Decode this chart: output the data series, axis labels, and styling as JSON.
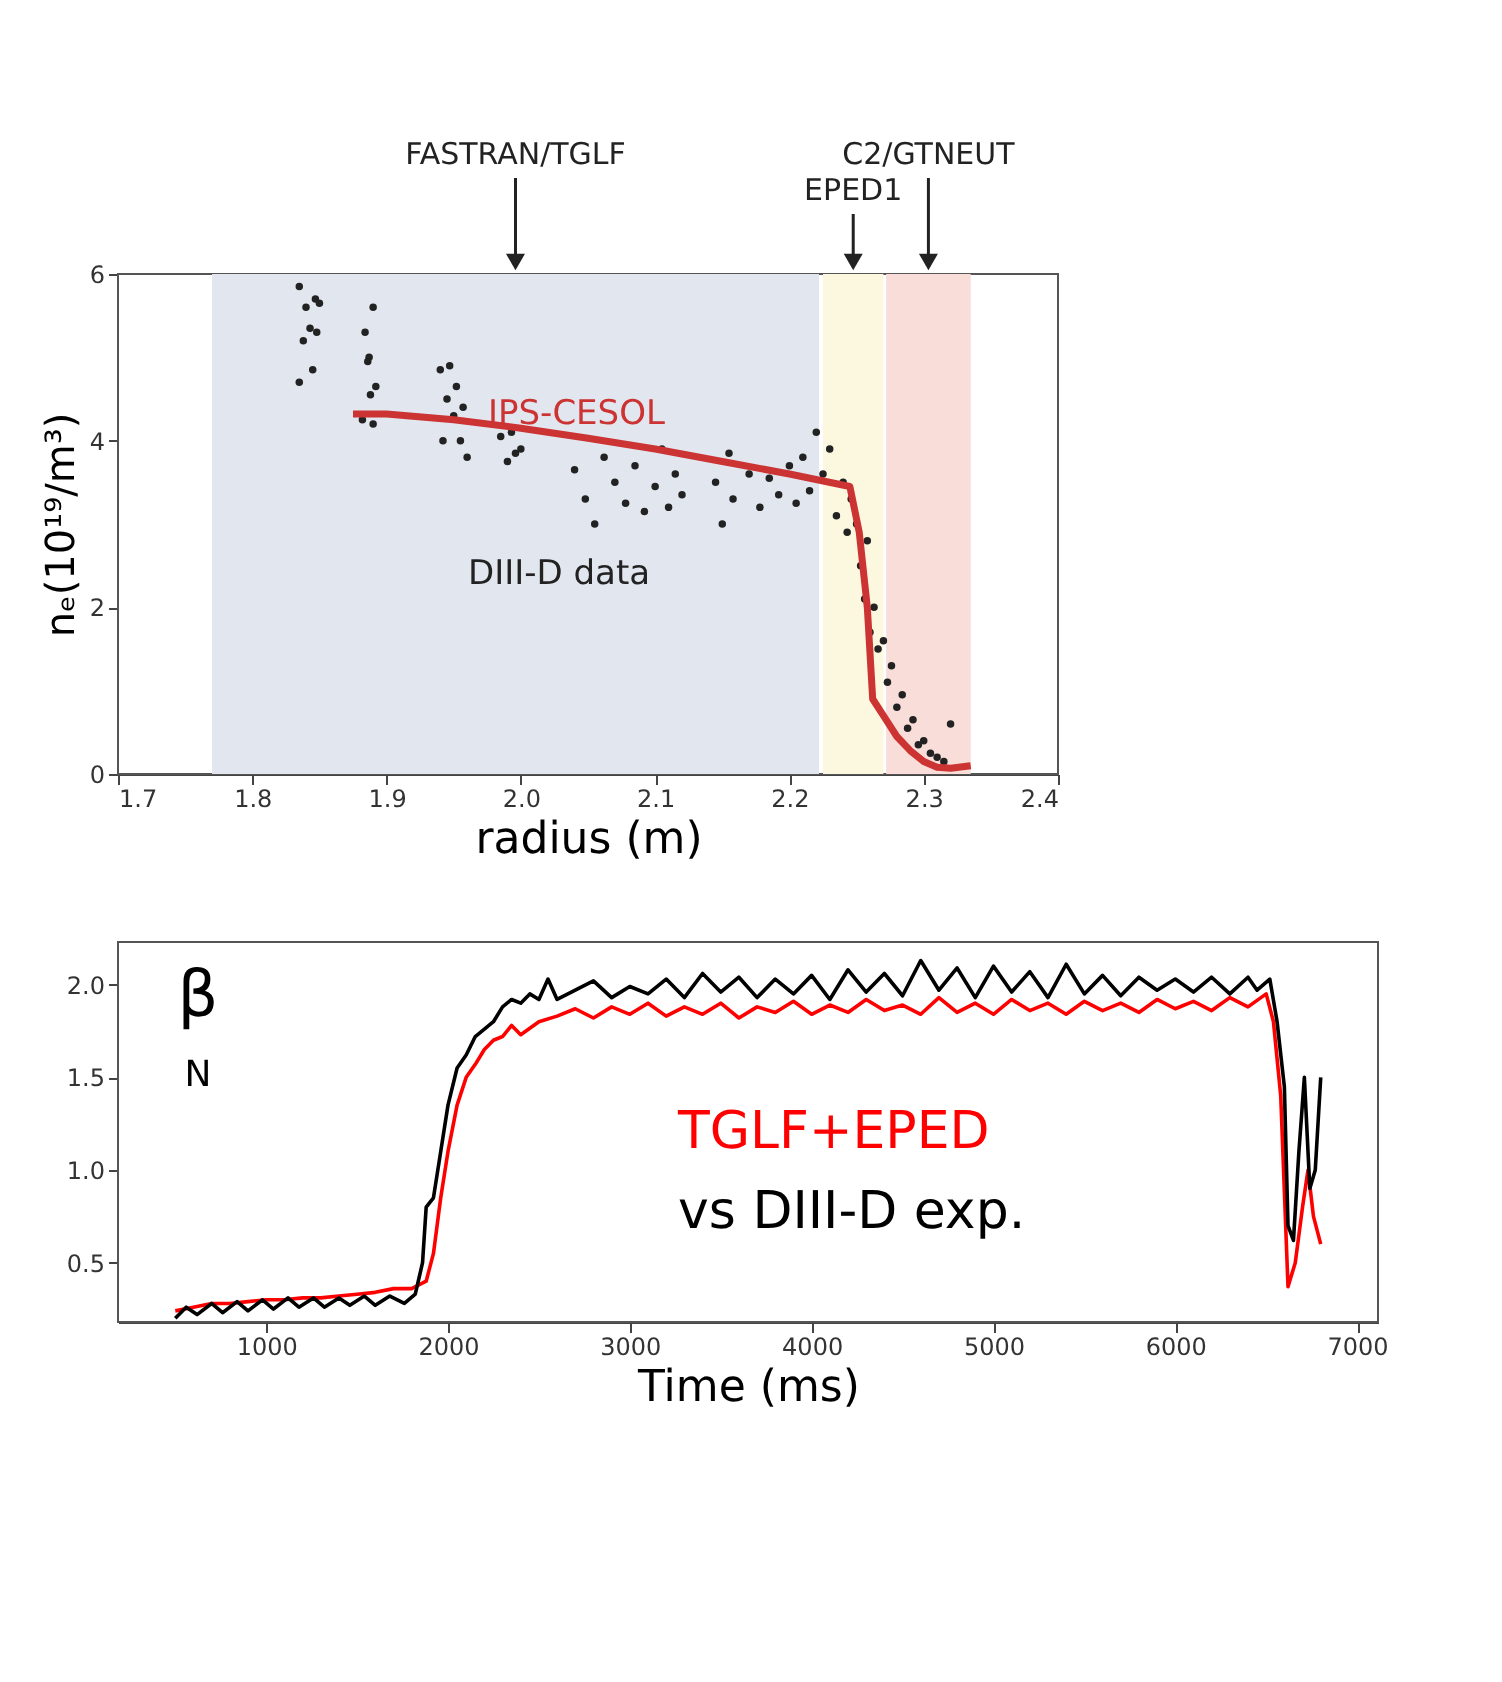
{
  "chart_data": [
    {
      "type": "scatter",
      "xlabel": "radius (m)",
      "ylabel": "nₑ(10¹⁹/m³)",
      "xlim": [
        1.7,
        2.4
      ],
      "xticks": [
        {
          "value": 1.7,
          "label": "1.7"
        },
        {
          "value": 1.8,
          "label": "1.8"
        },
        {
          "value": 1.9,
          "label": "1.9"
        },
        {
          "value": 2.0,
          "label": "2.0"
        },
        {
          "value": 2.1,
          "label": "2.1"
        },
        {
          "value": 2.2,
          "label": "2.2"
        },
        {
          "value": 2.3,
          "label": "2.3"
        },
        {
          "value": 2.4,
          "label": "2.4"
        }
      ],
      "ylim": [
        0,
        6
      ],
      "yticks": [
        0,
        2,
        4,
        6
      ],
      "grid": false,
      "legend": false,
      "bands": [
        {
          "axis": "x",
          "from": 1.77,
          "to": 2.222,
          "label": "FASTRAN/TGLF",
          "color": "#e2e7ef"
        },
        {
          "axis": "x",
          "from": 2.225,
          "to": 2.27,
          "label": "EPED1",
          "color": "#fcf8e0"
        },
        {
          "axis": "x",
          "from": 2.272,
          "to": 2.335,
          "label": "C2/GTNEUT",
          "color": "#f8ddd8"
        }
      ],
      "series": [
        {
          "name": "DIII-D data",
          "type": "scatter",
          "marker": "circle",
          "color": "#222222",
          "x": [
            1.835,
            1.835,
            1.838,
            1.84,
            1.843,
            1.845,
            1.847,
            1.848,
            1.85,
            1.882,
            1.884,
            1.886,
            1.887,
            1.888,
            1.89,
            1.89,
            1.892,
            1.94,
            1.942,
            1.945,
            1.947,
            1.95,
            1.952,
            1.955,
            1.957,
            1.96,
            1.985,
            1.99,
            1.993,
            1.996,
            2.0,
            2.04,
            2.048,
            2.055,
            2.062,
            2.07,
            2.078,
            2.085,
            2.092,
            2.1,
            2.105,
            2.11,
            2.115,
            2.12,
            2.145,
            2.15,
            2.155,
            2.158,
            2.17,
            2.178,
            2.185,
            2.192,
            2.2,
            2.205,
            2.21,
            2.215,
            2.22,
            2.225,
            2.23,
            2.235,
            2.24,
            2.243,
            2.246,
            2.25,
            2.253,
            2.256,
            2.258,
            2.26,
            2.263,
            2.266,
            2.27,
            2.273,
            2.276,
            2.28,
            2.284,
            2.288,
            2.292,
            2.296,
            2.3,
            2.305,
            2.31,
            2.315,
            2.32
          ],
          "values": [
            5.85,
            4.7,
            5.2,
            5.6,
            5.35,
            4.85,
            5.7,
            5.3,
            5.65,
            4.25,
            5.3,
            4.95,
            5.0,
            4.55,
            5.6,
            4.2,
            4.65,
            4.85,
            4.0,
            4.5,
            4.9,
            4.3,
            4.65,
            4.0,
            4.4,
            3.8,
            4.05,
            3.75,
            4.1,
            3.85,
            3.9,
            3.65,
            3.3,
            3.0,
            3.8,
            3.5,
            3.25,
            3.7,
            3.15,
            3.45,
            3.9,
            3.2,
            3.6,
            3.35,
            3.5,
            3.0,
            3.85,
            3.3,
            3.6,
            3.2,
            3.55,
            3.35,
            3.7,
            3.25,
            3.8,
            3.4,
            4.1,
            3.6,
            3.9,
            3.1,
            3.5,
            2.9,
            3.3,
            3.0,
            2.5,
            2.1,
            2.8,
            1.7,
            2.0,
            1.5,
            1.6,
            1.1,
            1.3,
            0.8,
            0.95,
            0.55,
            0.65,
            0.35,
            0.4,
            0.25,
            0.2,
            0.15,
            0.6
          ]
        },
        {
          "name": "IPS-CESOL",
          "type": "line",
          "marker": "none",
          "color": "#cc3333",
          "x": [
            1.875,
            1.9,
            1.95,
            2.0,
            2.05,
            2.1,
            2.15,
            2.2,
            2.245,
            2.252,
            2.258,
            2.262,
            2.27,
            2.28,
            2.29,
            2.3,
            2.31,
            2.32,
            2.335
          ],
          "values": [
            4.32,
            4.32,
            4.25,
            4.15,
            4.03,
            3.9,
            3.75,
            3.6,
            3.45,
            2.9,
            2.0,
            0.9,
            0.7,
            0.45,
            0.28,
            0.15,
            0.08,
            0.07,
            0.1
          ]
        }
      ]
    },
    {
      "type": "line",
      "xlabel": "Time (ms)",
      "ylabel": "β$_{N}$",
      "xlim": [
        185,
        7115
      ],
      "xticks": [
        1000,
        2000,
        3000,
        4000,
        5000,
        6000,
        7000
      ],
      "ylim": [
        0.18,
        2.23
      ],
      "yticks": [
        {
          "value": 0.5,
          "label": "0.5"
        },
        {
          "value": 1.0,
          "label": "1.0"
        },
        {
          "value": 1.5,
          "label": "1.5"
        },
        {
          "value": 2.0,
          "label": "2.0"
        }
      ],
      "grid": false,
      "legend": false,
      "marker": "none",
      "line_style": "solid",
      "series": [
        {
          "name": "TGLF+EPED",
          "color": "#ff0000",
          "x": [
            500,
            600,
            700,
            800,
            900,
            1000,
            1100,
            1200,
            1300,
            1400,
            1500,
            1600,
            1700,
            1800,
            1880,
            1920,
            1960,
            2000,
            2050,
            2100,
            2150,
            2200,
            2250,
            2300,
            2350,
            2400,
            2500,
            2600,
            2700,
            2800,
            2900,
            3000,
            3100,
            3200,
            3300,
            3400,
            3500,
            3600,
            3700,
            3800,
            3900,
            4000,
            4100,
            4200,
            4300,
            4400,
            4500,
            4600,
            4700,
            4800,
            4900,
            5000,
            5100,
            5200,
            5300,
            5400,
            5500,
            5600,
            5700,
            5800,
            5900,
            6000,
            6100,
            6200,
            6300,
            6400,
            6500,
            6540,
            6580,
            6620,
            6660,
            6700,
            6730,
            6760,
            6800
          ],
          "values": [
            0.24,
            0.26,
            0.28,
            0.28,
            0.29,
            0.3,
            0.3,
            0.31,
            0.31,
            0.32,
            0.33,
            0.34,
            0.36,
            0.36,
            0.4,
            0.55,
            0.85,
            1.1,
            1.35,
            1.5,
            1.57,
            1.65,
            1.7,
            1.72,
            1.78,
            1.73,
            1.8,
            1.83,
            1.87,
            1.82,
            1.88,
            1.84,
            1.9,
            1.83,
            1.88,
            1.84,
            1.9,
            1.82,
            1.88,
            1.85,
            1.91,
            1.84,
            1.89,
            1.85,
            1.92,
            1.86,
            1.89,
            1.84,
            1.93,
            1.85,
            1.9,
            1.84,
            1.92,
            1.86,
            1.9,
            1.84,
            1.91,
            1.86,
            1.9,
            1.85,
            1.92,
            1.87,
            1.91,
            1.86,
            1.93,
            1.88,
            1.95,
            1.8,
            1.4,
            0.37,
            0.5,
            0.8,
            1.0,
            0.75,
            0.6
          ]
        },
        {
          "name": "vs DIII-D exp.",
          "color": "#000000",
          "x": [
            500,
            560,
            620,
            700,
            760,
            840,
            900,
            980,
            1040,
            1120,
            1180,
            1260,
            1320,
            1400,
            1460,
            1540,
            1600,
            1680,
            1760,
            1820,
            1860,
            1880,
            1920,
            1960,
            2000,
            2050,
            2100,
            2150,
            2200,
            2250,
            2300,
            2350,
            2400,
            2450,
            2500,
            2550,
            2600,
            2700,
            2800,
            2900,
            3000,
            3100,
            3200,
            3300,
            3400,
            3500,
            3600,
            3700,
            3800,
            3900,
            4000,
            4100,
            4200,
            4300,
            4400,
            4500,
            4600,
            4700,
            4800,
            4900,
            5000,
            5100,
            5200,
            5300,
            5400,
            5500,
            5600,
            5700,
            5800,
            5900,
            6000,
            6100,
            6200,
            6300,
            6400,
            6450,
            6520,
            6560,
            6600,
            6620,
            6650,
            6680,
            6710,
            6740,
            6770,
            6800
          ],
          "values": [
            0.2,
            0.26,
            0.22,
            0.28,
            0.23,
            0.29,
            0.24,
            0.3,
            0.25,
            0.31,
            0.26,
            0.31,
            0.26,
            0.31,
            0.27,
            0.32,
            0.27,
            0.32,
            0.28,
            0.33,
            0.5,
            0.8,
            0.85,
            1.1,
            1.35,
            1.55,
            1.62,
            1.72,
            1.76,
            1.8,
            1.88,
            1.92,
            1.9,
            1.95,
            1.92,
            2.03,
            1.92,
            1.97,
            2.02,
            1.93,
            1.99,
            1.95,
            2.03,
            1.93,
            2.06,
            1.96,
            2.04,
            1.93,
            2.03,
            1.95,
            2.05,
            1.92,
            2.08,
            1.96,
            2.06,
            1.94,
            2.13,
            1.97,
            2.09,
            1.93,
            2.1,
            1.96,
            2.07,
            1.93,
            2.11,
            1.95,
            2.05,
            1.94,
            2.04,
            1.97,
            2.03,
            1.96,
            2.04,
            1.95,
            2.04,
            1.97,
            2.03,
            1.8,
            1.45,
            0.7,
            0.62,
            1.1,
            1.5,
            0.9,
            1.0,
            1.5
          ]
        }
      ]
    }
  ]
}
